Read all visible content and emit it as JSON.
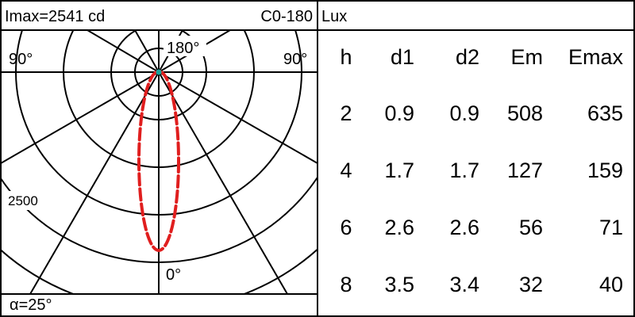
{
  "header": {
    "imax_label": "Imax=2541 cd",
    "plane_label": "C0-180",
    "unit_label": "Lux"
  },
  "polar_diagram": {
    "angle_top": "180°",
    "angle_left": "90°",
    "angle_right": "90°",
    "angle_bottom": "0°",
    "scale_label": "2500",
    "curve_color": "#e01e1e"
  },
  "beam_angle_label": "α=25°",
  "table": {
    "columns": [
      "h",
      "d1",
      "d2",
      "Em",
      "Emax"
    ],
    "rows": [
      [
        "2",
        "0.9",
        "0.9",
        "508",
        "635"
      ],
      [
        "4",
        "1.7",
        "1.7",
        "127",
        "159"
      ],
      [
        "6",
        "2.6",
        "2.6",
        "56",
        "71"
      ],
      [
        "8",
        "3.5",
        "3.4",
        "32",
        "40"
      ]
    ]
  }
}
